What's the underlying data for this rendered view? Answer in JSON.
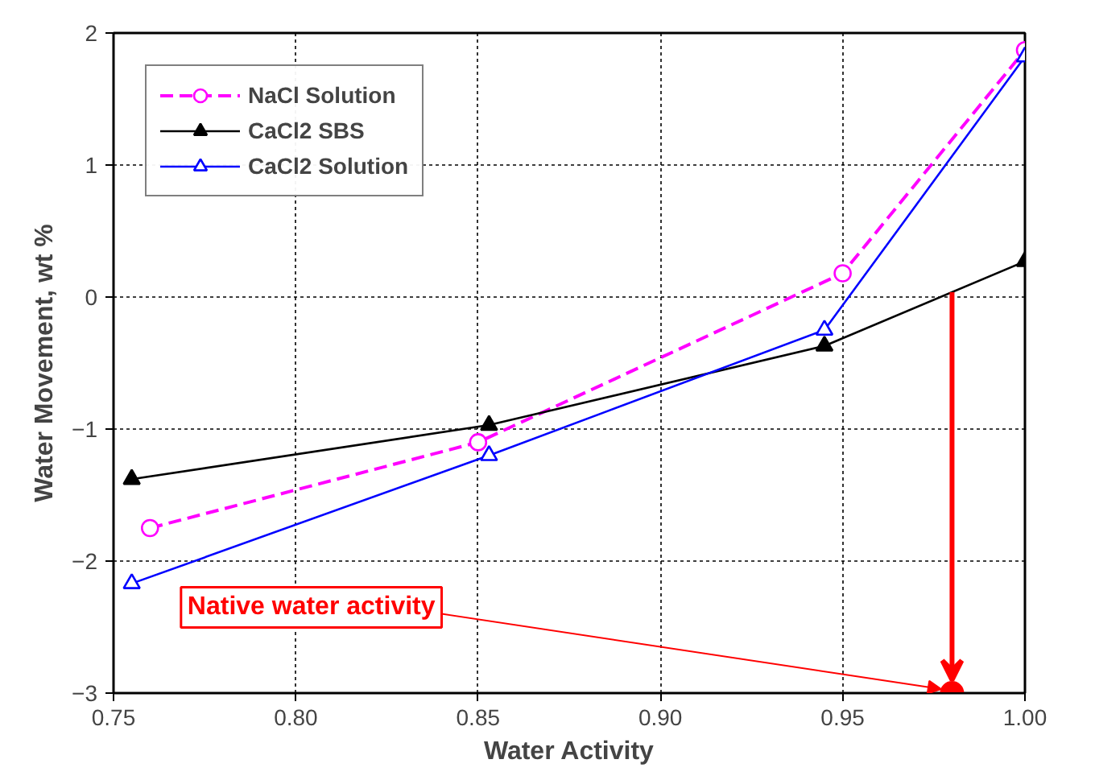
{
  "chart_data": {
    "type": "line",
    "xlabel": "Water Activity",
    "ylabel": "Water Movement, wt %",
    "x": [
      0.755,
      0.853,
      0.945,
      1.0
    ],
    "series": [
      {
        "name": "NaCl Solution",
        "color": "#ff00ff",
        "line_style": "dashed",
        "marker": "circle",
        "x": [
          0.76,
          0.85,
          0.95,
          1.0
        ],
        "values": [
          -1.75,
          -1.1,
          0.18,
          1.87
        ]
      },
      {
        "name": "CaCl2 SBS",
        "color": "#000000",
        "line_style": "solid",
        "marker": "triangle",
        "values": [
          -1.38,
          -0.97,
          -0.37,
          0.27
        ]
      },
      {
        "name": "CaCl2 Solution",
        "color": "#0000ff",
        "line_style": "solid",
        "marker": "triangle",
        "values": [
          -2.17,
          -1.2,
          -0.25,
          1.82
        ]
      }
    ],
    "xlim": [
      0.75,
      1.0
    ],
    "ylim": [
      -3,
      2
    ],
    "xticks": [
      0.75,
      {
        "value": 0.8,
        "label": "0.80"
      },
      0.85,
      {
        "value": 0.9,
        "label": "0.90"
      },
      0.95,
      {
        "value": 1.0,
        "label": "1.00"
      }
    ],
    "yticks": [
      -3,
      -2,
      -1,
      0,
      1,
      2
    ],
    "grid": true,
    "legend": "top left",
    "annotations": [
      {
        "text": "Native water activity",
        "x": 0.98,
        "y": -3
      }
    ]
  }
}
